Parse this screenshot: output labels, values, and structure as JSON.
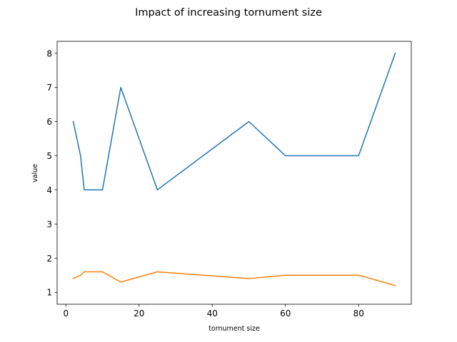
{
  "chart_data": {
    "type": "line",
    "title": "Impact of increasing tornument size",
    "xlabel": "tornument size",
    "ylabel": "value",
    "xlim": [
      -2.4,
      94.4
    ],
    "ylim": [
      0.65,
      8.35
    ],
    "xticks": [
      0,
      20,
      40,
      60,
      80
    ],
    "yticks": [
      1,
      2,
      3,
      4,
      5,
      6,
      7,
      8
    ],
    "xtick_labels": [
      "0",
      "20",
      "40",
      "60",
      "80"
    ],
    "ytick_labels": [
      "1",
      "2",
      "3",
      "4",
      "5",
      "6",
      "7",
      "8"
    ],
    "grid": false,
    "legend": false,
    "series": [
      {
        "color": "#1f77b4",
        "points": [
          [
            2,
            6
          ],
          [
            4,
            5
          ],
          [
            5,
            4
          ],
          [
            10,
            4
          ],
          [
            15,
            7
          ],
          [
            25,
            4
          ],
          [
            50,
            6
          ],
          [
            60,
            5
          ],
          [
            80,
            5
          ],
          [
            90,
            8
          ]
        ]
      },
      {
        "color": "#ff7f0e",
        "points": [
          [
            2,
            1.4
          ],
          [
            4,
            1.5
          ],
          [
            5,
            1.6
          ],
          [
            10,
            1.6
          ],
          [
            15,
            1.3
          ],
          [
            25,
            1.6
          ],
          [
            50,
            1.4
          ],
          [
            60,
            1.5
          ],
          [
            80,
            1.5
          ],
          [
            90,
            1.2
          ]
        ]
      }
    ]
  }
}
